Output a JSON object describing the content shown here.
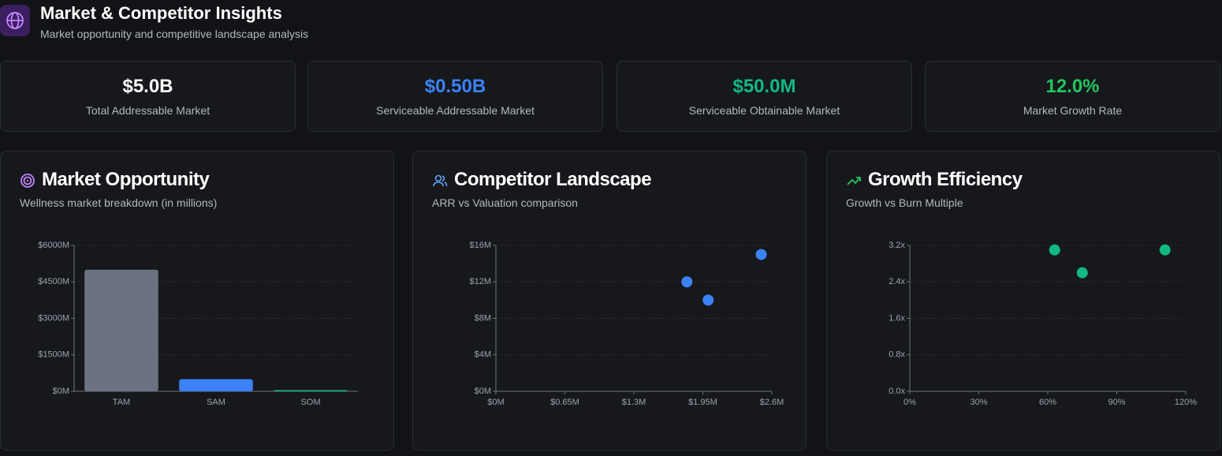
{
  "header": {
    "title": "Market & Competitor Insights",
    "subtitle": "Market opportunity and competitive landscape analysis"
  },
  "kpis": [
    {
      "value": "$5.0B",
      "label": "Total Addressable Market",
      "color": "#ffffff"
    },
    {
      "value": "$0.50B",
      "label": "Serviceable Addressable Market",
      "color": "#3b82f6"
    },
    {
      "value": "$50.0M",
      "label": "Serviceable Obtainable Market",
      "color": "#10b981"
    },
    {
      "value": "12.0%",
      "label": "Market Growth Rate",
      "color": "#22c55e"
    }
  ],
  "chart_data": [
    {
      "type": "bar",
      "title": "Market Opportunity",
      "subtitle": "Wellness market breakdown (in millions)",
      "categories": [
        "TAM",
        "SAM",
        "SOM"
      ],
      "values": [
        5000,
        500,
        50
      ],
      "colors": [
        "#6b7280",
        "#3b82f6",
        "#10b981"
      ],
      "ylim": [
        0,
        6000
      ],
      "yticks": [
        {
          "value": 0,
          "label": "$0M"
        },
        {
          "value": 1500,
          "label": "$1500M"
        },
        {
          "value": 3000,
          "label": "$3000M"
        },
        {
          "value": 4500,
          "label": "$4500M"
        },
        {
          "value": 6000,
          "label": "$6000M"
        }
      ],
      "grid": true
    },
    {
      "type": "scatter",
      "title": "Competitor Landscape",
      "subtitle": "ARR vs Valuation comparison",
      "series": [
        {
          "color": "#3b82f6",
          "x": [
            1.8,
            2.0,
            2.5
          ],
          "values": [
            12,
            10,
            15
          ]
        }
      ],
      "xlim": [
        0,
        2.6
      ],
      "xticks": [
        {
          "value": 0,
          "label": "$0M"
        },
        {
          "value": 0.65,
          "label": "$0.65M"
        },
        {
          "value": 1.3,
          "label": "$1.3M"
        },
        {
          "value": 1.95,
          "label": "$1.95M"
        },
        {
          "value": 2.6,
          "label": "$2.6M"
        }
      ],
      "ylim": [
        0,
        16
      ],
      "yticks": [
        {
          "value": 0,
          "label": "$0M"
        },
        {
          "value": 4,
          "label": "$4M"
        },
        {
          "value": 8,
          "label": "$8M"
        },
        {
          "value": 12,
          "label": "$12M"
        },
        {
          "value": 16,
          "label": "$16M"
        }
      ],
      "grid": true
    },
    {
      "type": "scatter",
      "title": "Growth Efficiency",
      "subtitle": "Growth vs Burn Multiple",
      "series": [
        {
          "color": "#10b981",
          "x": [
            63,
            75,
            111
          ],
          "values": [
            3.1,
            2.6,
            3.1
          ]
        }
      ],
      "xlim": [
        0,
        120
      ],
      "xticks": [
        {
          "value": 0,
          "label": "0%"
        },
        {
          "value": 30,
          "label": "30%"
        },
        {
          "value": 60,
          "label": "60%"
        },
        {
          "value": 90,
          "label": "90%"
        },
        {
          "value": 120,
          "label": "120%"
        }
      ],
      "ylim": [
        0,
        3.2
      ],
      "yticks": [
        {
          "value": 0,
          "label": "0.0x"
        },
        {
          "value": 0.8,
          "label": "0.8x"
        },
        {
          "value": 1.6,
          "label": "1.6x"
        },
        {
          "value": 2.4,
          "label": "2.4x"
        },
        {
          "value": 3.2,
          "label": "3.2x"
        }
      ],
      "grid": true
    }
  ]
}
